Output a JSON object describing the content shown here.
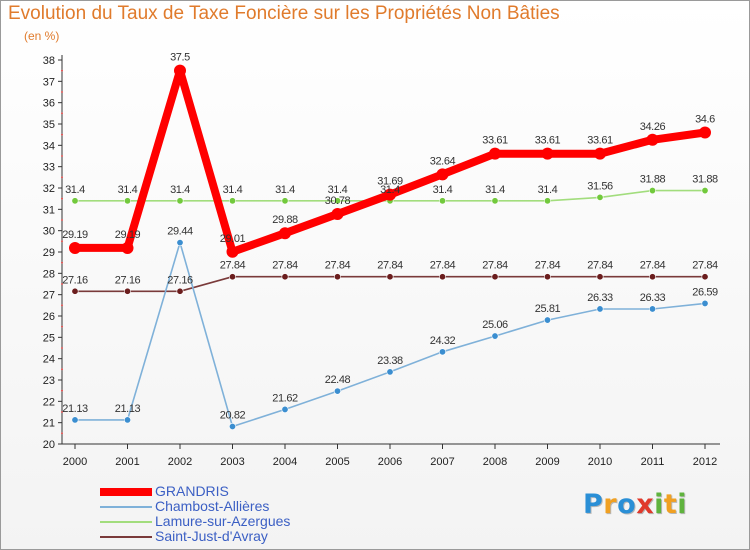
{
  "title": "Evolution du Taux de Taxe Foncière sur les Propriétés Non Bâties",
  "subtitle": "(en %)",
  "logo": {
    "letters": [
      "P",
      "r",
      "o",
      "x",
      "i",
      "t",
      "i"
    ],
    "colors": [
      "#2a8fd6",
      "#f0a022",
      "#2a8fd6",
      "#e0392b",
      "#5fb33d",
      "#f0a022",
      "#5fb33d"
    ]
  },
  "chart_data": {
    "type": "line",
    "title": "Evolution du Taux de Taxe Foncière sur les Propriétés Non Bâties",
    "ylabel": "(en %)",
    "xlabel": "",
    "categories": [
      "2000",
      "2001",
      "2002",
      "2003",
      "2004",
      "2005",
      "2006",
      "2007",
      "2008",
      "2009",
      "2010",
      "2011",
      "2012"
    ],
    "ylim": [
      20,
      38
    ],
    "yticks": [
      "20",
      "21",
      "22",
      "23",
      "24",
      "25",
      "26",
      "27",
      "28",
      "29",
      "30",
      "31",
      "32",
      "33",
      "34",
      "35",
      "36",
      "37",
      "38"
    ],
    "grid": false,
    "legend": "bottom-left",
    "series": [
      {
        "name": "GRANDRIS",
        "color": "#ff0000",
        "style": "thick",
        "values": [
          29.19,
          29.19,
          37.5,
          29.01,
          29.88,
          30.78,
          31.69,
          32.64,
          33.61,
          33.61,
          33.61,
          34.26,
          34.6
        ],
        "labels": [
          "29.19",
          "29.19",
          "37.5",
          "29.01",
          "29.88",
          "30.78",
          "31.69",
          "32.64",
          "33.61",
          "33.61",
          "33.61",
          "34.26",
          "34.6"
        ]
      },
      {
        "name": "Chambost-Allières",
        "color": "#3b8ed0",
        "line": "#7fb1d9",
        "style": "thin",
        "values": [
          21.13,
          21.13,
          29.44,
          20.82,
          21.62,
          22.48,
          23.38,
          24.32,
          25.06,
          25.81,
          26.33,
          26.33,
          26.59
        ],
        "labels": [
          "21.13",
          "21.13",
          "29.44",
          "20.82",
          "21.62",
          "22.48",
          "23.38",
          "24.32",
          "25.06",
          "25.81",
          "26.33",
          "26.33",
          "26.59"
        ]
      },
      {
        "name": "Lamure-sur-Azergues",
        "color": "#72c93c",
        "line": "#a2dd7d",
        "style": "thin",
        "values": [
          31.4,
          31.4,
          31.4,
          31.4,
          31.4,
          31.4,
          31.4,
          31.4,
          31.4,
          31.4,
          31.56,
          31.88,
          31.88
        ],
        "labels": [
          "31.4",
          "31.4",
          "31.4",
          "31.4",
          "31.4",
          "31.4",
          "31.4",
          "31.4",
          "31.4",
          "31.4",
          "31.56",
          "31.88",
          "31.88"
        ]
      },
      {
        "name": "Saint-Just-d'Avray",
        "color": "#6b1d1d",
        "line": "#7a3a3a",
        "style": "thin",
        "values": [
          27.16,
          27.16,
          27.16,
          27.84,
          27.84,
          27.84,
          27.84,
          27.84,
          27.84,
          27.84,
          27.84,
          27.84,
          27.84
        ],
        "labels": [
          "27.16",
          "27.16",
          "27.16",
          "27.84",
          "27.84",
          "27.84",
          "27.84",
          "27.84",
          "27.84",
          "27.84",
          "27.84",
          "27.84",
          "27.84"
        ]
      }
    ]
  }
}
